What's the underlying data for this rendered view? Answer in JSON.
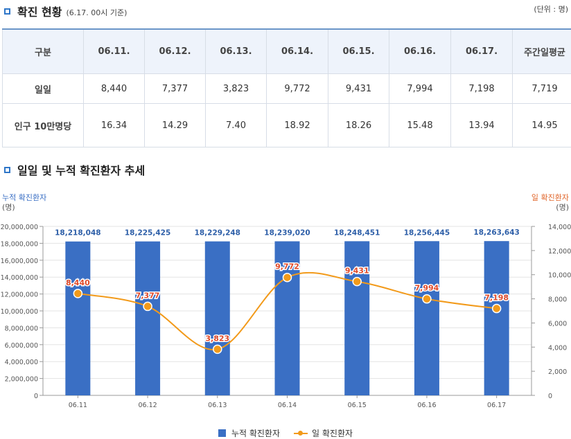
{
  "section1": {
    "title": "확진 현황",
    "note": "(6.17. 00시 기준)",
    "unit": "(단위 : 명)"
  },
  "table": {
    "headers": [
      "구분",
      "06.11.",
      "06.12.",
      "06.13.",
      "06.14.",
      "06.15.",
      "06.16.",
      "06.17.",
      "주간일평균"
    ],
    "rows": [
      {
        "label": "일일",
        "values": [
          "8,440",
          "7,377",
          "3,823",
          "9,772",
          "9,431",
          "7,994",
          "7,198",
          "7,719"
        ]
      },
      {
        "label": "인구 10만명당",
        "values": [
          "16.34",
          "14.29",
          "7.40",
          "18.92",
          "18.26",
          "15.48",
          "13.94",
          "14.95"
        ]
      }
    ]
  },
  "section2": {
    "title": "일일 및 누적 확진환자 추세"
  },
  "chart_data": {
    "type": "bar",
    "categories": [
      "06.11",
      "06.12",
      "06.13",
      "06.14",
      "06.15",
      "06.16",
      "06.17"
    ],
    "series": [
      {
        "name": "누적 확진환자",
        "type": "bar",
        "axis": "left",
        "values": [
          18218048,
          18225425,
          18229248,
          18239020,
          18248451,
          18256445,
          18263643
        ],
        "labels": [
          "18,218,048",
          "18,225,425",
          "18,229,248",
          "18,239,020",
          "18,248,451",
          "18,256,445",
          "18,263,643"
        ]
      },
      {
        "name": "일 확진환자",
        "type": "line",
        "axis": "right",
        "values": [
          8440,
          7377,
          3823,
          9772,
          9431,
          7994,
          7198
        ],
        "labels": [
          "8,440",
          "7,377",
          "3,823",
          "9,772",
          "9,431",
          "7,994",
          "7,198"
        ]
      }
    ],
    "left_axis": {
      "label": "누적 확진환자",
      "unit": "(명)",
      "ylim": [
        0,
        20000000
      ],
      "ticks": [
        "0",
        "2,000,000",
        "4,000,000",
        "6,000,000",
        "8,000,000",
        "10,000,000",
        "12,000,000",
        "14,000,000",
        "16,000,000",
        "18,000,000",
        "20,000,000"
      ]
    },
    "right_axis": {
      "label": "일 확진환자",
      "unit": "(명)",
      "ylim": [
        0,
        14000
      ],
      "ticks": [
        "0",
        "2,000",
        "4,000",
        "6,000",
        "8,000",
        "10,000",
        "12,000",
        "14,000"
      ]
    },
    "grid": true,
    "legend_position": "bottom",
    "colors": {
      "bar": "#3a6fc4",
      "line": "#f29a1a",
      "bar_label": "#2e5fa8",
      "line_label": "#e04a2a",
      "left_axis_label": "#3a6fc4",
      "right_axis_label": "#e0652a"
    }
  }
}
